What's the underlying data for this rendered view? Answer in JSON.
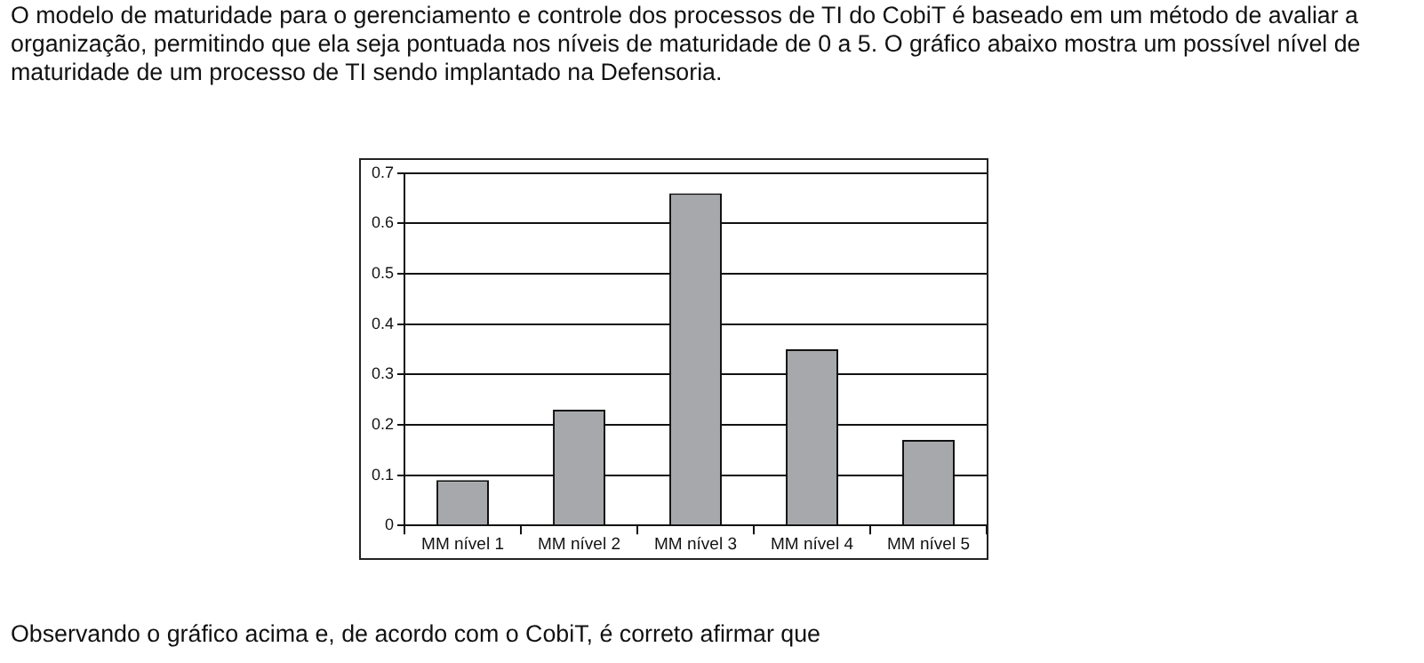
{
  "chart_data": {
    "type": "bar",
    "annotations": [
      "O modelo de maturidade para o gerenciamento e controle dos processos de TI do CobiT é baseado em um método de avaliar a organização, permitindo que ela seja pontuada nos níveis de maturidade de 0 a 5. O gráfico abaixo mostra um possível nível de maturidade de um processo de TI sendo implantado na Defensoria.",
      "Observando o gráfico acima e, de acordo com o CobiT, é correto afirmar que"
    ],
    "categories": [
      "MM nível 1",
      "MM nível 2",
      "MM nível 3",
      "MM nível 4",
      "MM nível 5"
    ],
    "values": [
      0.09,
      0.23,
      0.66,
      0.35,
      0.17
    ],
    "color": "#a6a8ab",
    "ylim": [
      0,
      0.7
    ],
    "yticks": [
      0,
      0.1,
      0.2,
      0.3,
      0.4,
      0.5,
      0.6,
      0.7
    ],
    "grid": "y"
  }
}
